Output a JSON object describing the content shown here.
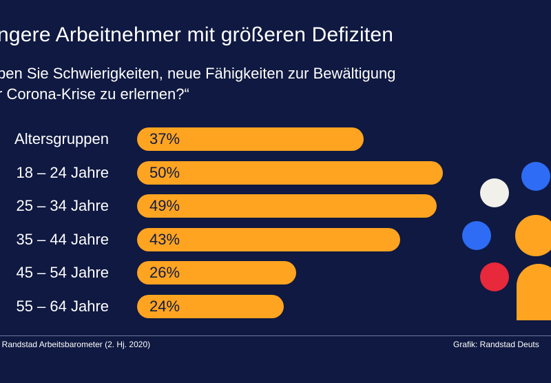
{
  "header": {
    "title": "ngere Arbeitnehmer mit größeren Defiziten",
    "subtitle_line1": "ben Sie Schwierigkeiten, neue Fähigkeiten zur Bewältigung",
    "subtitle_line2": "r Corona-Krise zu erlernen?“"
  },
  "footer": {
    "source": ": Randstad Arbeitsbarometer (2. Hj. 2020)",
    "credit": "Grafik: Randstad Deuts"
  },
  "colors": {
    "background": "#0f1941",
    "bar": "#ffa421",
    "dot_white": "#f2f0ea",
    "dot_blue": "#2e6cf5",
    "dot_red": "#e8283b",
    "dot_orange": "#ffa421"
  },
  "chart_data": {
    "type": "bar",
    "orientation": "horizontal",
    "categories": [
      "Altersgruppen",
      "18 – 24 Jahre",
      "25 – 34 Jahre",
      "35 – 44 Jahre",
      "45 – 54 Jahre",
      "55 – 64 Jahre"
    ],
    "values": [
      37,
      50,
      49,
      43,
      26,
      24
    ],
    "value_labels": [
      "37%",
      "50%",
      "49%",
      "43%",
      "26%",
      "24%"
    ],
    "unit": "%",
    "xlim": [
      0,
      50
    ],
    "grid": false
  }
}
